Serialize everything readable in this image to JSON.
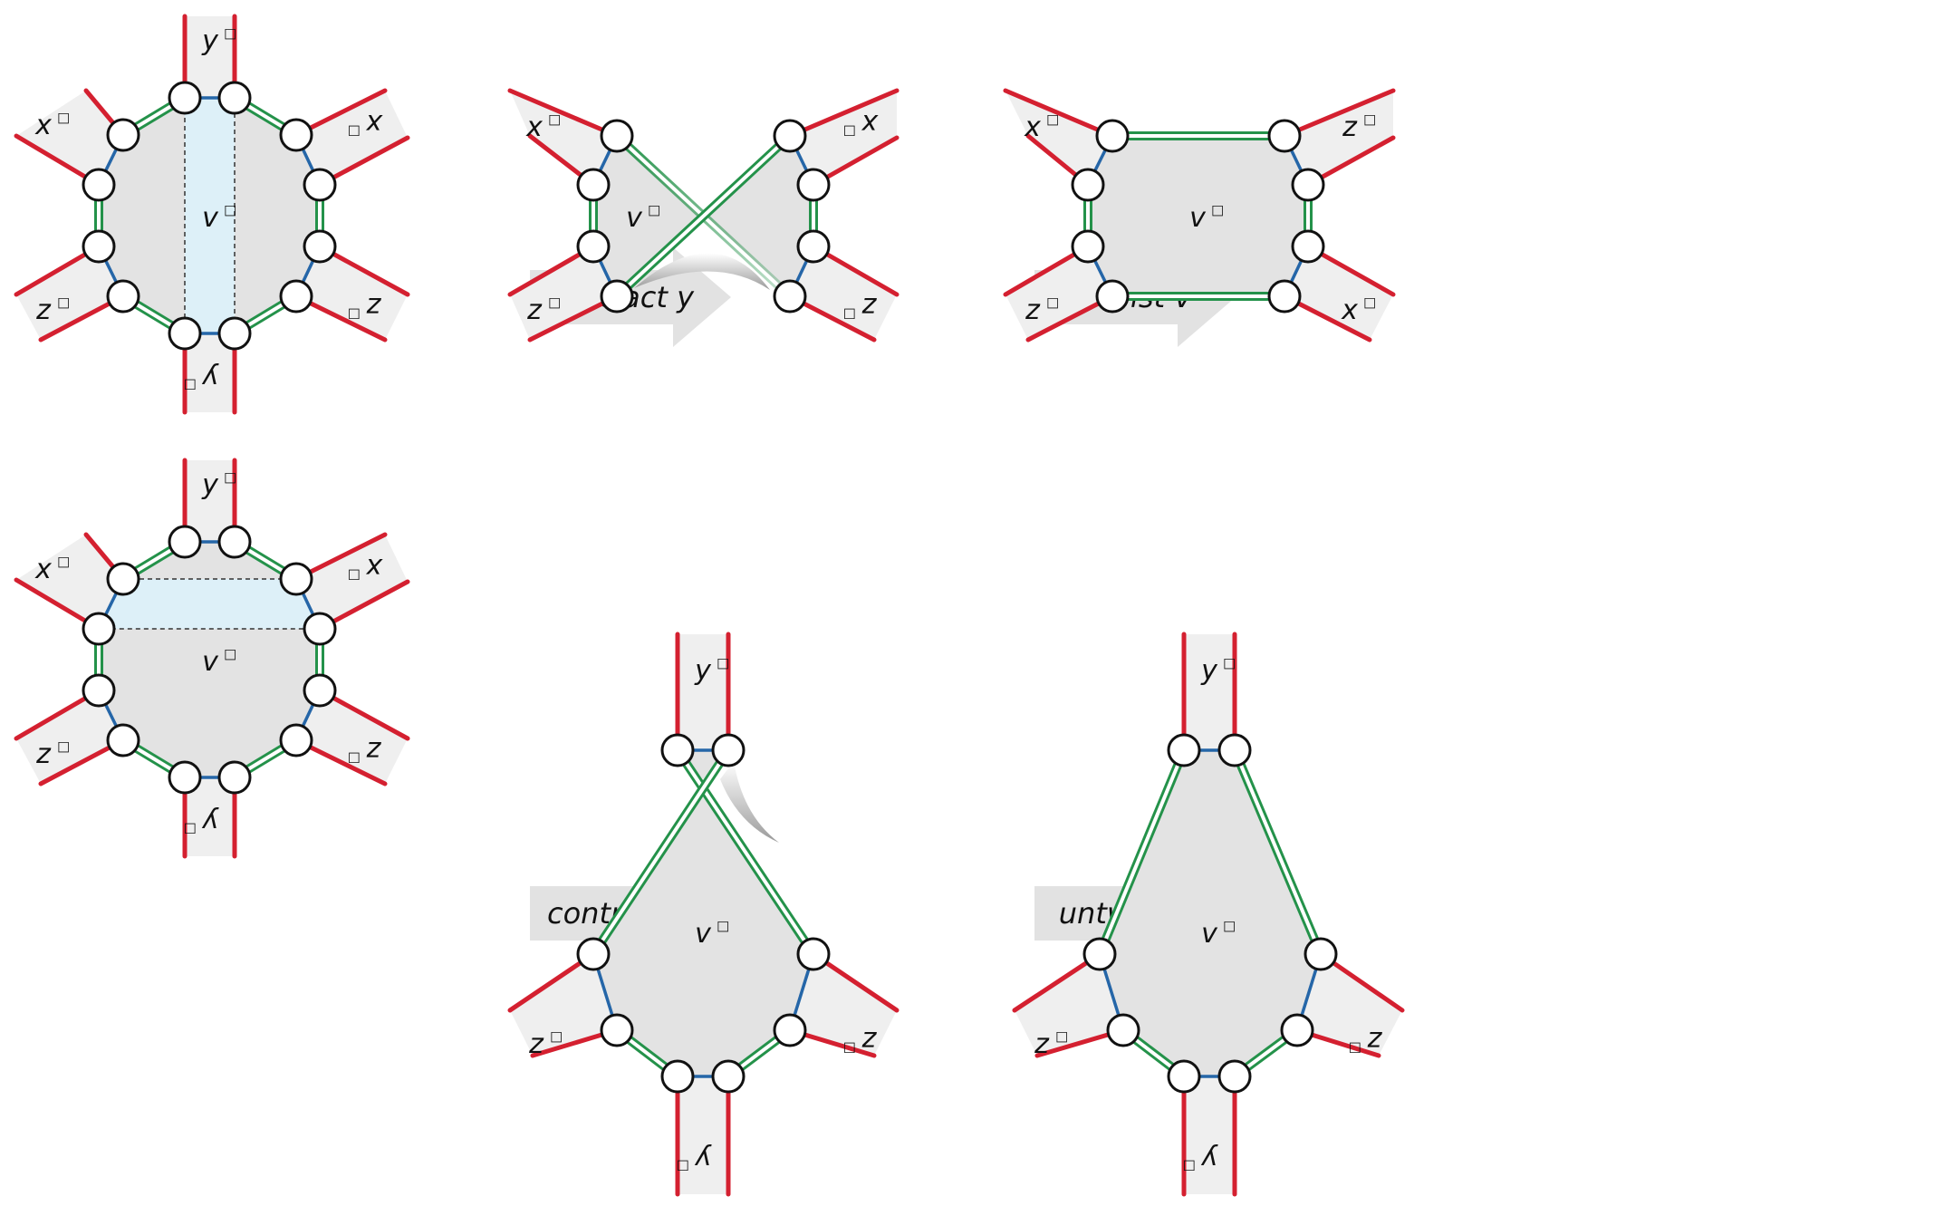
{
  "colors": {
    "edge": "#d42030",
    "arm_fill": "#efefef",
    "face_fill": "#e3e3e3",
    "highlight_fill": "#ddf0f8",
    "blue_edge": "#2566a8",
    "green_edge": "#24924a",
    "node_stroke": "#111111",
    "arrow_fill": "#e2e2e2"
  },
  "labels": {
    "y": "y",
    "x": "x",
    "z": "z",
    "v": "v",
    "dual_mark": "□"
  },
  "operations": {
    "contract_y": "contract y",
    "untwist_top": "untwist v",
    "contract_x": "contract x",
    "untwist_bottom": "untwist v"
  }
}
